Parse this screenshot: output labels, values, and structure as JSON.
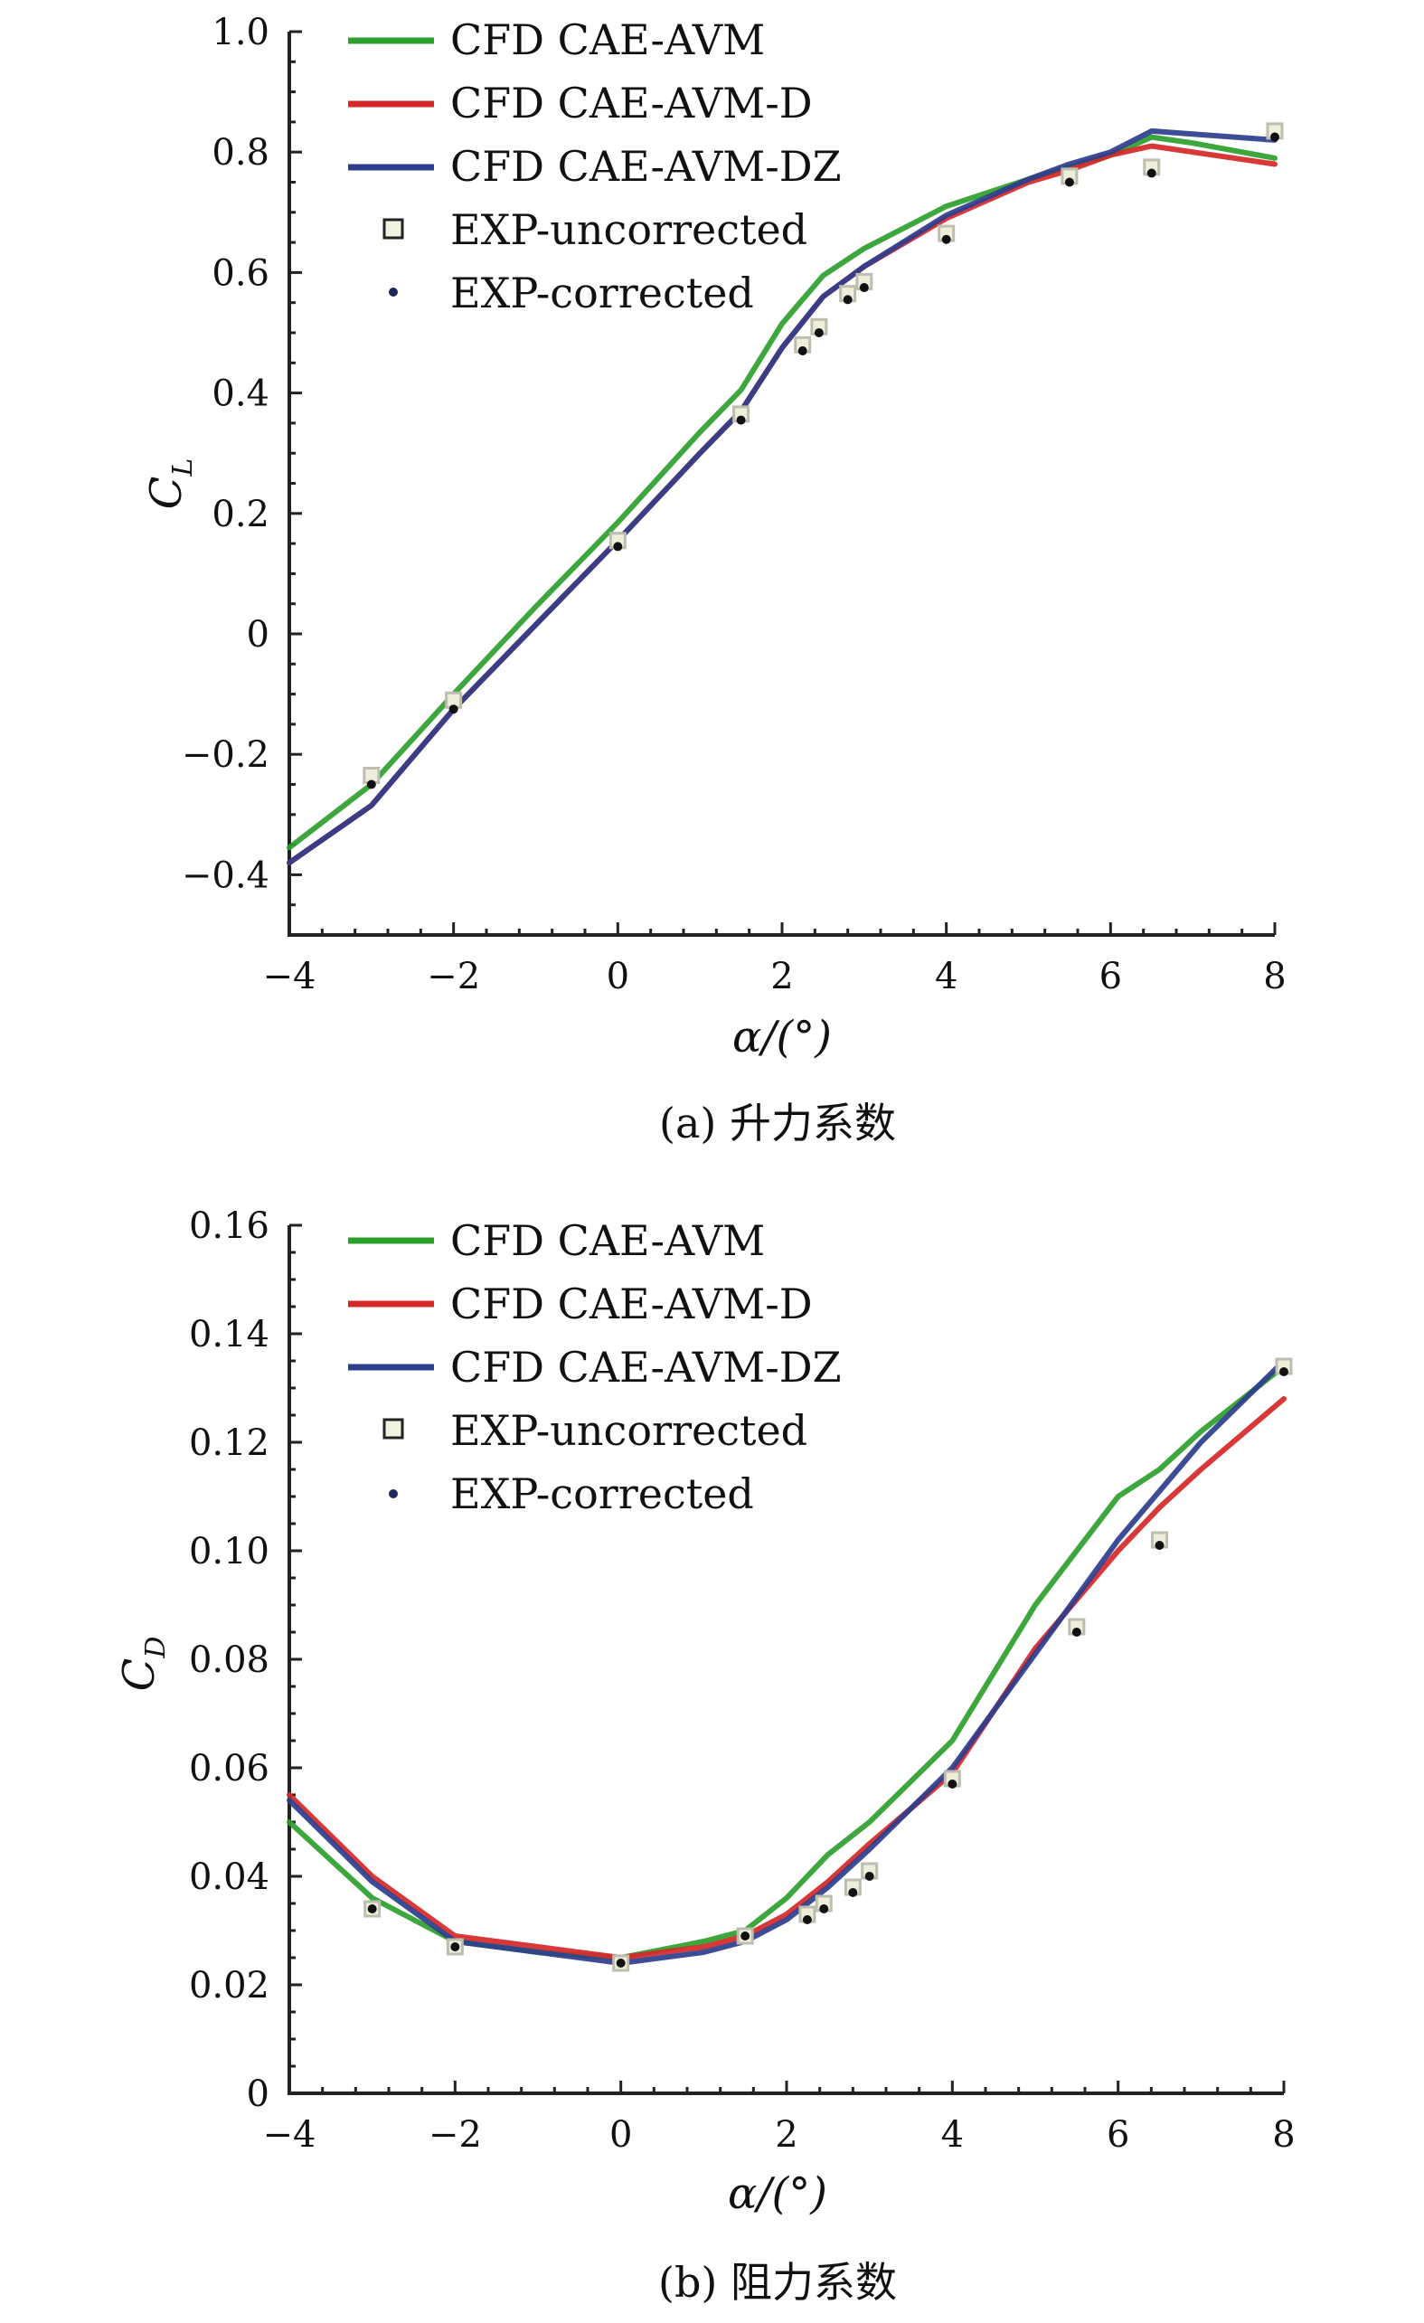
{
  "chart_data": [
    {
      "type": "line",
      "caption": "(a) 升力系数",
      "xlabel": "α/(°)",
      "ylabel_main": "C",
      "ylabel_sub": "L",
      "xlim": [
        -4,
        8
      ],
      "ylim": [
        -0.5,
        1.0
      ],
      "x_ticks": [
        "−4",
        "−2",
        "0",
        "2",
        "4",
        "6",
        "8"
      ],
      "x_tick_values": [
        -4,
        -2,
        0,
        2,
        4,
        6,
        8
      ],
      "y_ticks": [
        "−0.4",
        "−0.2",
        "0",
        "0.2",
        "0.4",
        "0.6",
        "0.8",
        "1.0"
      ],
      "y_tick_values": [
        -0.4,
        -0.2,
        0,
        0.2,
        0.4,
        0.6,
        0.8,
        1.0
      ],
      "legend_position": "top-left",
      "series": [
        {
          "name": "CFD CAE-AVM",
          "kind": "line",
          "color": "#2ca02c",
          "x": [
            -4,
            -3,
            -2,
            -1,
            0,
            1,
            1.5,
            2,
            2.5,
            3,
            4,
            5,
            5.5,
            6,
            6.5,
            7,
            8
          ],
          "y": [
            -0.355,
            -0.25,
            -0.1,
            0.045,
            0.185,
            0.335,
            0.405,
            0.515,
            0.595,
            0.64,
            0.71,
            0.755,
            0.775,
            0.795,
            0.825,
            0.815,
            0.79
          ]
        },
        {
          "name": "CFD CAE-AVM-D",
          "kind": "line",
          "color": "#d62728",
          "x": [
            -4,
            -3,
            -2,
            -1,
            0,
            1,
            1.5,
            2,
            2.5,
            3,
            4,
            5,
            5.5,
            6,
            6.5,
            7,
            8
          ],
          "y": [
            -0.38,
            -0.285,
            -0.125,
            0.015,
            0.155,
            0.3,
            0.37,
            0.475,
            0.56,
            0.61,
            0.69,
            0.75,
            0.77,
            0.795,
            0.81,
            0.8,
            0.78
          ]
        },
        {
          "name": "CFD CAE-AVM-DZ",
          "kind": "line",
          "color": "#2c3e8c",
          "x": [
            -4,
            -3,
            -2,
            -1,
            0,
            1,
            1.5,
            2,
            2.5,
            3,
            4,
            5,
            5.5,
            6,
            6.5,
            7,
            8
          ],
          "y": [
            -0.38,
            -0.285,
            -0.125,
            0.015,
            0.155,
            0.3,
            0.37,
            0.475,
            0.56,
            0.61,
            0.695,
            0.755,
            0.78,
            0.8,
            0.835,
            0.83,
            0.82
          ]
        },
        {
          "name": "EXP-uncorrected",
          "kind": "square",
          "x": [
            -3,
            -2,
            0,
            1.5,
            2.25,
            2.45,
            2.8,
            3.0,
            4,
            5.5,
            6.5,
            8
          ],
          "y": [
            -0.235,
            -0.11,
            0.155,
            0.365,
            0.48,
            0.51,
            0.565,
            0.585,
            0.665,
            0.76,
            0.775,
            0.835
          ]
        },
        {
          "name": "EXP-corrected",
          "kind": "dot",
          "x": [
            -3,
            -2,
            0,
            1.5,
            2.25,
            2.45,
            2.8,
            3.0,
            4,
            5.5,
            6.5,
            8
          ],
          "y": [
            -0.25,
            -0.125,
            0.145,
            0.355,
            0.47,
            0.5,
            0.555,
            0.575,
            0.655,
            0.75,
            0.765,
            0.825
          ]
        }
      ]
    },
    {
      "type": "line",
      "caption": "(b) 阻力系数",
      "xlabel": "α/(°)",
      "ylabel_main": "C",
      "ylabel_sub": "D",
      "xlim": [
        -4,
        8
      ],
      "ylim": [
        0,
        0.16
      ],
      "x_ticks": [
        "−4",
        "−2",
        "0",
        "2",
        "4",
        "6",
        "8"
      ],
      "x_tick_values": [
        -4,
        -2,
        0,
        2,
        4,
        6,
        8
      ],
      "y_ticks": [
        "0",
        "0.02",
        "0.04",
        "0.06",
        "0.08",
        "0.10",
        "0.12",
        "0.14",
        "0.16"
      ],
      "y_tick_values": [
        0,
        0.02,
        0.04,
        0.06,
        0.08,
        0.1,
        0.12,
        0.14,
        0.16
      ],
      "legend_position": "top-left",
      "series": [
        {
          "name": "CFD CAE-AVM",
          "kind": "line",
          "color": "#2ca02c",
          "x": [
            -4,
            -3,
            -2,
            -1,
            0,
            1,
            1.5,
            2,
            2.5,
            3,
            4,
            5,
            6,
            6.5,
            7,
            8
          ],
          "y": [
            0.05,
            0.036,
            0.028,
            0.026,
            0.025,
            0.028,
            0.03,
            0.036,
            0.044,
            0.05,
            0.065,
            0.09,
            0.11,
            0.115,
            0.122,
            0.134
          ]
        },
        {
          "name": "CFD CAE-AVM-D",
          "kind": "line",
          "color": "#d62728",
          "x": [
            -4,
            -3,
            -2,
            -1,
            0,
            1,
            1.5,
            2,
            2.5,
            3,
            4,
            5,
            6,
            6.5,
            7,
            8
          ],
          "y": [
            0.055,
            0.04,
            0.029,
            0.027,
            0.025,
            0.027,
            0.029,
            0.033,
            0.039,
            0.046,
            0.059,
            0.082,
            0.1,
            0.108,
            0.115,
            0.128
          ]
        },
        {
          "name": "CFD CAE-AVM-DZ",
          "kind": "line",
          "color": "#2c3e8c",
          "x": [
            -4,
            -3,
            -2,
            -1,
            0,
            1,
            1.5,
            2,
            2.5,
            3,
            4,
            5,
            6,
            6.5,
            7,
            8
          ],
          "y": [
            0.054,
            0.039,
            0.028,
            0.026,
            0.024,
            0.026,
            0.028,
            0.032,
            0.038,
            0.045,
            0.06,
            0.081,
            0.102,
            0.111,
            0.12,
            0.135
          ]
        },
        {
          "name": "EXP-uncorrected",
          "kind": "square",
          "x": [
            -3,
            -2,
            0,
            1.5,
            2.25,
            2.45,
            2.8,
            3.0,
            4,
            5.5,
            6.5,
            8
          ],
          "y": [
            0.034,
            0.027,
            0.024,
            0.029,
            0.033,
            0.035,
            0.038,
            0.041,
            0.058,
            0.086,
            0.102,
            0.134
          ]
        },
        {
          "name": "EXP-corrected",
          "kind": "dot",
          "x": [
            -3,
            -2,
            0,
            1.5,
            2.25,
            2.45,
            2.8,
            3.0,
            4,
            5.5,
            6.5,
            8
          ],
          "y": [
            0.034,
            0.027,
            0.024,
            0.029,
            0.032,
            0.034,
            0.037,
            0.04,
            0.057,
            0.085,
            0.101,
            0.133
          ]
        }
      ]
    }
  ]
}
